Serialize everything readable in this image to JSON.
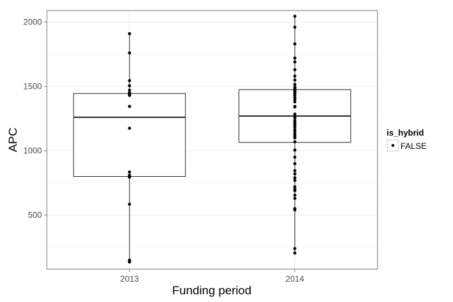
{
  "chart_data": {
    "type": "boxplot",
    "title": "",
    "xlabel": "Funding period",
    "ylabel": "APC",
    "categories": [
      "2013",
      "2014"
    ],
    "ylim": [
      80,
      2090
    ],
    "yticks": [
      500,
      1000,
      1500,
      2000
    ],
    "grid": true,
    "legend": {
      "title": "is_hybrid",
      "placement": "right",
      "entries": [
        "FALSE"
      ]
    },
    "boxes": [
      {
        "category": "2013",
        "q1": 800,
        "median": 1260,
        "q3": 1445,
        "whisker_low": 135,
        "whisker_high": 1910
      },
      {
        "category": "2014",
        "q1": 1065,
        "median": 1270,
        "q3": 1475,
        "whisker_low": 205,
        "whisker_high": 2045
      }
    ],
    "points": [
      {
        "category": "2013",
        "values": [
          1910,
          1760,
          1545,
          1505,
          1470,
          1450,
          1440,
          1430,
          1345,
          1175,
          835,
          810,
          800,
          795,
          585,
          150,
          140,
          135
        ]
      },
      {
        "category": "2014",
        "values": [
          2045,
          1960,
          1830,
          1720,
          1690,
          1630,
          1580,
          1550,
          1515,
          1495,
          1485,
          1470,
          1460,
          1450,
          1440,
          1430,
          1415,
          1400,
          1380,
          1345,
          1340,
          1285,
          1270,
          1255,
          1235,
          1220,
          1210,
          1200,
          1185,
          1165,
          1150,
          1130,
          1115,
          1100,
          1070,
          1005,
          950,
          900,
          845,
          820,
          790,
          770,
          720,
          700,
          690,
          655,
          630,
          550,
          540,
          240,
          205
        ]
      }
    ]
  }
}
